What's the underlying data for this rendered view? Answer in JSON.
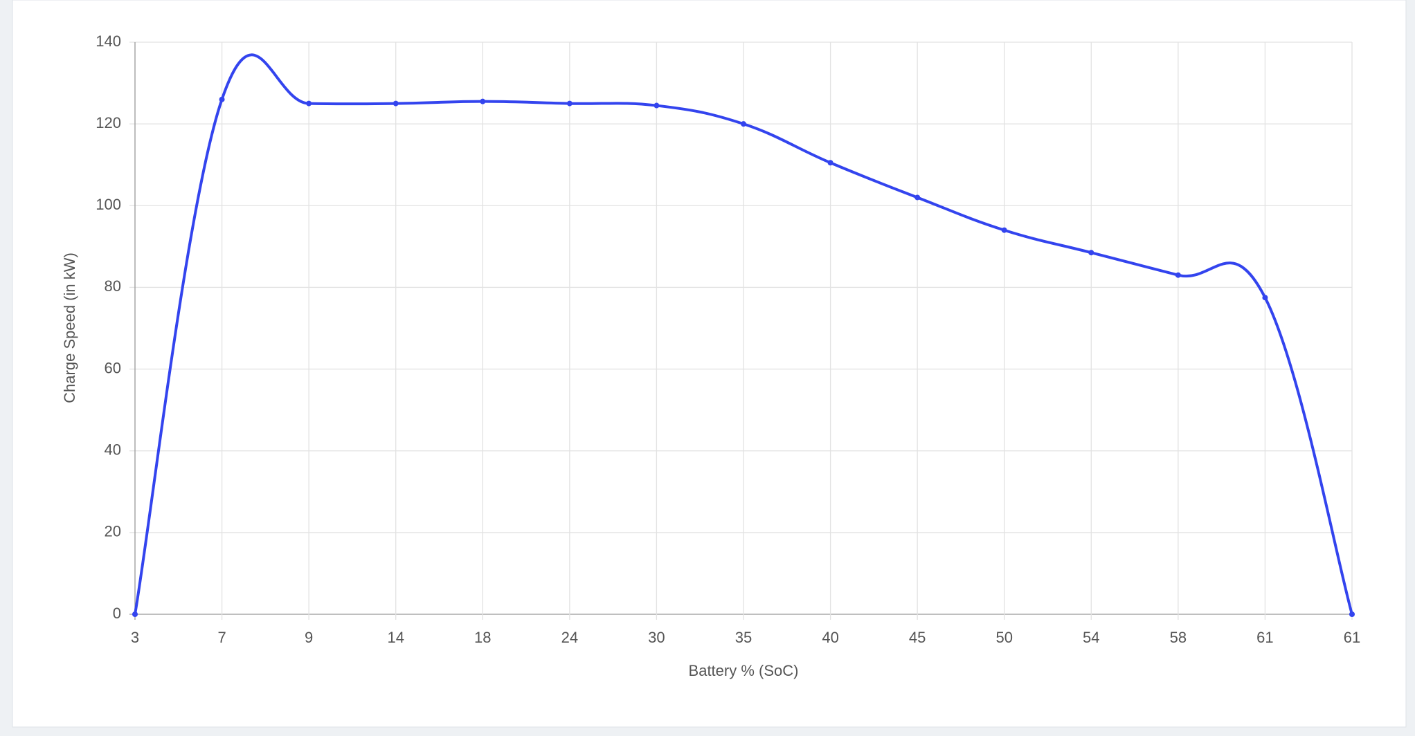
{
  "chart_data": {
    "type": "line",
    "x_label": "Battery % (SoC)",
    "y_label": "Charge Speed (in kW)",
    "categories": [
      "3",
      "7",
      "9",
      "14",
      "18",
      "24",
      "30",
      "35",
      "40",
      "45",
      "50",
      "54",
      "58",
      "61",
      "61"
    ],
    "series": [
      {
        "color": "#3344ee",
        "values": [
          0,
          126,
          125,
          125,
          125.5,
          125,
          124.5,
          120,
          110.5,
          102,
          94,
          88.5,
          83,
          77.5,
          0
        ]
      }
    ],
    "ylim": [
      0,
      140
    ],
    "yticks": [
      0,
      20,
      40,
      60,
      80,
      100,
      120,
      140
    ],
    "grid": true
  }
}
